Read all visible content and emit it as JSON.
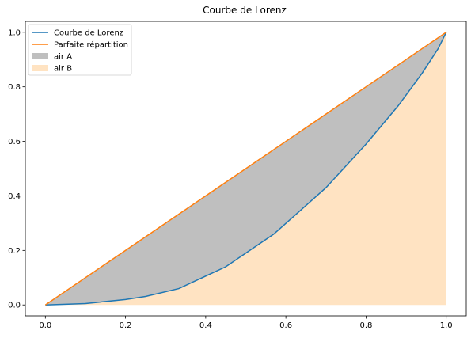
{
  "chart_data": {
    "type": "line",
    "title": "Courbe de Lorenz",
    "xlabel": "",
    "ylabel": "",
    "xlim": [
      -0.05,
      1.05
    ],
    "ylim": [
      -0.04,
      1.04
    ],
    "xticks": [
      0.0,
      0.2,
      0.4,
      0.6,
      0.8,
      1.0
    ],
    "xtick_labels": [
      "0.0",
      "0.2",
      "0.4",
      "0.6",
      "0.8",
      "1.0"
    ],
    "yticks": [
      0.0,
      0.2,
      0.4,
      0.6,
      0.8,
      1.0
    ],
    "ytick_labels": [
      "0.0",
      "0.2",
      "0.4",
      "0.6",
      "0.8",
      "1.0"
    ],
    "grid": false,
    "legend_position": "top-left",
    "series": [
      {
        "name": "Courbe de Lorenz",
        "kind": "line",
        "color": "#1f77b4",
        "x": [
          0.0,
          0.1,
          0.2,
          0.25,
          0.333,
          0.45,
          0.57,
          0.7,
          0.8,
          0.88,
          0.94,
          0.98,
          1.0
        ],
        "y": [
          0.0,
          0.005,
          0.02,
          0.031,
          0.06,
          0.14,
          0.26,
          0.43,
          0.59,
          0.73,
          0.85,
          0.94,
          1.0
        ]
      },
      {
        "name": "Parfaite répartition",
        "kind": "line",
        "color": "#ff7f0e",
        "x": [
          0.0,
          1.0
        ],
        "y": [
          0.0,
          1.0
        ]
      },
      {
        "name": "air A",
        "kind": "area",
        "color": "#bfbfbf",
        "description_of_fill": "between line of equality and Lorenz curve"
      },
      {
        "name": "air B",
        "kind": "area",
        "color": "#ffe3c2",
        "description_of_fill": "between Lorenz curve and x-axis"
      }
    ]
  }
}
